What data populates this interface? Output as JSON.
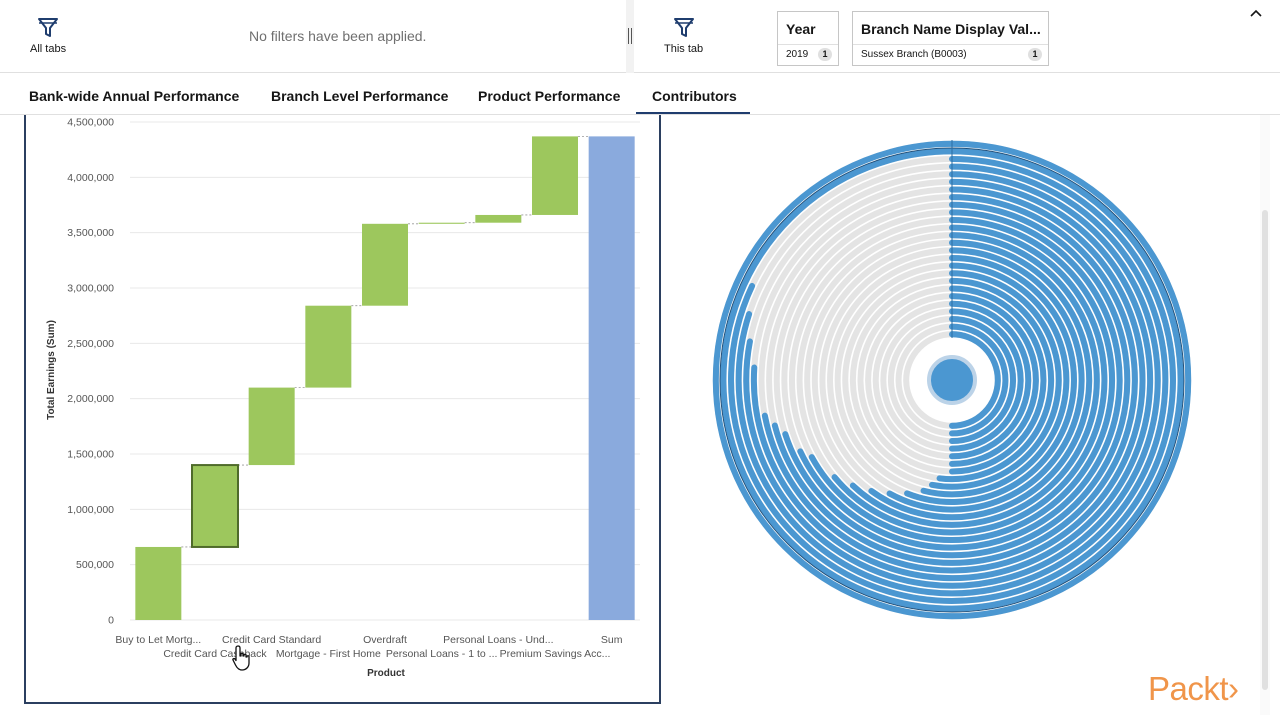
{
  "filterbar": {
    "all_tabs": {
      "label": "All tabs",
      "icon": "funnel-icon"
    },
    "no_filters": "No filters have been applied.",
    "this_tab": {
      "label": "This tab",
      "icon": "funnel-icon"
    },
    "chips": [
      {
        "title": "Year",
        "value": "2019",
        "count": "1"
      },
      {
        "title": "Branch Name Display Val...",
        "value": "Sussex Branch (B0003)",
        "count": "1"
      }
    ],
    "collapse_icon": "chevron-up-icon"
  },
  "tabs": [
    {
      "label": "Bank-wide Annual Performance",
      "active": false
    },
    {
      "label": "Branch Level Performance",
      "active": false
    },
    {
      "label": "Product Performance",
      "active": false
    },
    {
      "label": "Contributors",
      "active": true
    }
  ],
  "colors": {
    "bar_green": "#9dc75d",
    "bar_green_selected_border": "#4f6b2a",
    "bar_total": "#8aaadd",
    "radial_blue": "#4b97d1",
    "radial_track": "#e4e4e4",
    "accent": "#1f3d6e",
    "logo": "#f0954a"
  },
  "chart_data": {
    "type": "bar",
    "subtype": "waterfall",
    "xlabel": "Product",
    "ylabel": "Total Earnings (Sum)",
    "ylim": [
      0,
      4500000
    ],
    "yticks": [
      "4,500,000",
      "4,000,000",
      "3,500,000",
      "3,000,000",
      "2,500,000",
      "2,000,000",
      "1,500,000",
      "1,000,000",
      "500,000",
      "0"
    ],
    "ytick_values": [
      4500000,
      4000000,
      3500000,
      3000000,
      2500000,
      2000000,
      1500000,
      1000000,
      500000,
      0
    ],
    "categories": [
      "Buy to Let Mortg...",
      "Credit Card Cashback",
      "Credit Card Standard",
      "Mortgage - First Home",
      "Overdraft",
      "Personal Loans - 1 to ...",
      "Personal Loans - Und...",
      "Premium Savings Acc...",
      "Sum"
    ],
    "category_label_rows": [
      0,
      1,
      0,
      1,
      0,
      1,
      0,
      1,
      0
    ],
    "values": [
      660000,
      740000,
      700000,
      740000,
      740000,
      10000,
      70000,
      710000,
      4370000
    ],
    "start": [
      0,
      660000,
      1400000,
      2100000,
      2840000,
      3580000,
      3590000,
      3660000,
      0
    ],
    "is_total": [
      false,
      false,
      false,
      false,
      false,
      false,
      false,
      false,
      true
    ],
    "selected_index": 1,
    "grid": true,
    "legend": "none"
  },
  "radial": {
    "type": "radial-bar",
    "ring_fractions": [
      1.0,
      1.0,
      0.82,
      0.8,
      0.78,
      0.76,
      0.72,
      0.71,
      0.7,
      0.68,
      0.67,
      0.64,
      0.62,
      0.6,
      0.58,
      0.56,
      0.54,
      0.53,
      0.52,
      0.5,
      0.5,
      0.5,
      0.5,
      0.5,
      0.5,
      0.5
    ],
    "outer_ring_full": true
  },
  "logo_text": "Packt›"
}
